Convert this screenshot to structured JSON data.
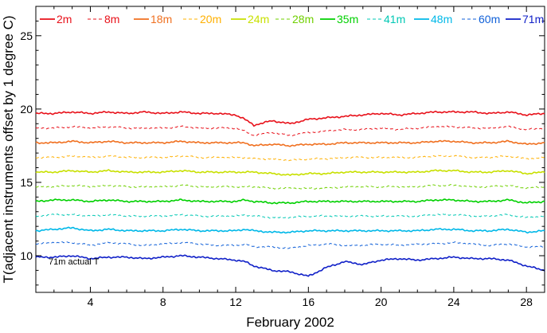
{
  "chart_data": {
    "type": "line",
    "title": "",
    "xlabel": "February 2002",
    "ylabel": "T(adjacent instruments offset by 1 degree C)",
    "xlim": [
      1,
      29
    ],
    "ylim": [
      7.5,
      27
    ],
    "x_ticks": [
      4,
      8,
      12,
      16,
      20,
      24,
      28
    ],
    "x_tick_labels": [
      "4",
      "8",
      "12",
      "16",
      "20",
      "24",
      "28"
    ],
    "y_ticks": [
      10,
      15,
      20,
      25
    ],
    "y_tick_labels": [
      "10",
      "15",
      "20",
      "25"
    ],
    "grid": false,
    "legend_position": "top",
    "annotation": "71m actual T",
    "x": [
      1,
      2,
      3,
      4,
      5,
      6,
      7,
      8,
      9,
      10,
      11,
      12,
      12.5,
      13,
      14,
      15,
      16,
      17,
      18,
      19,
      20,
      21,
      22,
      23,
      24,
      25,
      26,
      27,
      28,
      29
    ],
    "series": [
      {
        "name": "2m",
        "color": "#e8111a",
        "dash": "solid",
        "values": [
          19.7,
          19.7,
          19.8,
          19.7,
          19.8,
          19.7,
          19.8,
          19.7,
          19.8,
          19.7,
          19.7,
          19.6,
          19.3,
          18.9,
          19.2,
          19.0,
          19.3,
          19.4,
          19.5,
          19.6,
          19.7,
          19.6,
          19.7,
          19.8,
          19.8,
          19.8,
          19.7,
          19.8,
          19.6,
          19.7
        ]
      },
      {
        "name": "8m",
        "color": "#e8111a",
        "dash": "dashed",
        "values": [
          18.7,
          18.7,
          18.8,
          18.7,
          18.8,
          18.7,
          18.7,
          18.7,
          18.8,
          18.7,
          18.7,
          18.7,
          18.5,
          18.2,
          18.4,
          18.2,
          18.4,
          18.5,
          18.6,
          18.6,
          18.7,
          18.6,
          18.7,
          18.8,
          18.8,
          18.7,
          18.7,
          18.8,
          18.6,
          18.7
        ]
      },
      {
        "name": "18m",
        "color": "#f07020",
        "dash": "solid",
        "values": [
          17.7,
          17.7,
          17.8,
          17.7,
          17.8,
          17.7,
          17.7,
          17.7,
          17.8,
          17.7,
          17.7,
          17.7,
          17.7,
          17.5,
          17.6,
          17.5,
          17.6,
          17.6,
          17.7,
          17.7,
          17.7,
          17.7,
          17.7,
          17.8,
          17.8,
          17.7,
          17.7,
          17.8,
          17.6,
          17.7
        ]
      },
      {
        "name": "20m",
        "color": "#ffb000",
        "dash": "dashed",
        "values": [
          16.7,
          16.7,
          16.8,
          16.7,
          16.8,
          16.7,
          16.7,
          16.7,
          16.8,
          16.7,
          16.7,
          16.7,
          16.7,
          16.6,
          16.6,
          16.5,
          16.6,
          16.6,
          16.7,
          16.7,
          16.7,
          16.7,
          16.7,
          16.8,
          16.8,
          16.7,
          16.7,
          16.8,
          16.6,
          16.7
        ]
      },
      {
        "name": "24m",
        "color": "#c8e000",
        "dash": "solid",
        "values": [
          15.7,
          15.7,
          15.8,
          15.7,
          15.8,
          15.7,
          15.7,
          15.7,
          15.8,
          15.7,
          15.7,
          15.7,
          15.7,
          15.7,
          15.6,
          15.5,
          15.6,
          15.6,
          15.7,
          15.7,
          15.7,
          15.7,
          15.7,
          15.8,
          15.8,
          15.7,
          15.7,
          15.8,
          15.6,
          15.7
        ]
      },
      {
        "name": "28m",
        "color": "#70d000",
        "dash": "dashed",
        "values": [
          14.7,
          14.7,
          14.8,
          14.7,
          14.8,
          14.7,
          14.7,
          14.7,
          14.8,
          14.7,
          14.7,
          14.7,
          14.7,
          14.7,
          14.6,
          14.6,
          14.6,
          14.6,
          14.7,
          14.7,
          14.7,
          14.7,
          14.7,
          14.8,
          14.8,
          14.7,
          14.7,
          14.8,
          14.6,
          14.7
        ]
      },
      {
        "name": "35m",
        "color": "#00d000",
        "dash": "solid",
        "values": [
          13.7,
          13.8,
          13.8,
          13.7,
          13.8,
          13.7,
          13.7,
          13.7,
          13.8,
          13.7,
          13.7,
          13.7,
          13.8,
          13.7,
          13.6,
          13.6,
          13.7,
          13.7,
          13.7,
          13.7,
          13.7,
          13.7,
          13.7,
          13.8,
          13.8,
          13.7,
          13.7,
          13.8,
          13.6,
          13.7
        ]
      },
      {
        "name": "41m",
        "color": "#00c8b4",
        "dash": "dashed",
        "values": [
          12.7,
          12.8,
          12.8,
          12.7,
          12.8,
          12.7,
          12.7,
          12.7,
          12.8,
          12.7,
          12.7,
          12.7,
          12.8,
          12.7,
          12.6,
          12.6,
          12.7,
          12.7,
          12.7,
          12.7,
          12.7,
          12.7,
          12.7,
          12.8,
          12.8,
          12.7,
          12.7,
          12.8,
          12.6,
          12.7
        ]
      },
      {
        "name": "48m",
        "color": "#00b8e8",
        "dash": "solid",
        "values": [
          11.7,
          11.8,
          11.9,
          11.7,
          11.8,
          11.7,
          11.7,
          11.7,
          11.8,
          11.7,
          11.7,
          11.7,
          11.8,
          11.7,
          11.6,
          11.6,
          11.7,
          11.7,
          11.7,
          11.7,
          11.7,
          11.7,
          11.7,
          11.8,
          11.8,
          11.7,
          11.7,
          11.8,
          11.6,
          11.7
        ]
      },
      {
        "name": "60m",
        "color": "#1060d8",
        "dash": "dashed",
        "values": [
          10.8,
          10.9,
          10.9,
          10.7,
          10.9,
          10.8,
          10.7,
          10.8,
          10.9,
          10.8,
          10.7,
          10.7,
          10.8,
          10.6,
          10.6,
          10.5,
          10.7,
          10.8,
          10.7,
          10.7,
          10.8,
          10.7,
          10.8,
          10.8,
          10.9,
          10.8,
          10.7,
          10.8,
          10.6,
          10.6
        ]
      },
      {
        "name": "71m",
        "color": "#1020c8",
        "dash": "solid",
        "values": [
          9.9,
          9.9,
          10.0,
          9.8,
          9.9,
          9.9,
          9.8,
          9.9,
          10.0,
          9.9,
          9.8,
          9.7,
          9.6,
          9.3,
          9.0,
          8.9,
          8.6,
          9.2,
          9.6,
          9.4,
          9.7,
          9.8,
          9.7,
          9.8,
          9.9,
          9.8,
          9.8,
          9.7,
          9.3,
          9.0
        ]
      }
    ]
  }
}
